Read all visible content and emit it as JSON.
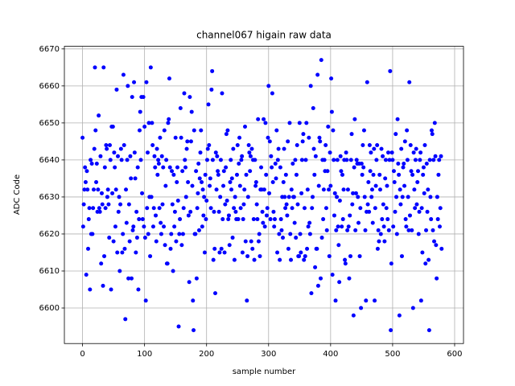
{
  "chart_data": {
    "type": "scatter",
    "title": "channel067 higain raw data",
    "xlabel": "sample number",
    "ylabel": "ADC Code",
    "color": "#0000ff",
    "grid": true,
    "xlim": [
      -29.3,
      614.3
    ],
    "ylim": [
      6590.4,
      6670.7
    ],
    "xticks": [
      0,
      100,
      200,
      300,
      400,
      500,
      600
    ],
    "yticks": [
      6600,
      6610,
      6620,
      6630,
      6640,
      6650,
      6660,
      6670
    ],
    "x": [
      0,
      1,
      2,
      3,
      4,
      5,
      6,
      7,
      8,
      9,
      10,
      11,
      12,
      13,
      14,
      15,
      16,
      17,
      18,
      19,
      20,
      21,
      22,
      23,
      24,
      25,
      26,
      27,
      28,
      29,
      30,
      31,
      32,
      33,
      34,
      35,
      36,
      37,
      38,
      39,
      40,
      41,
      42,
      43,
      44,
      45,
      46,
      47,
      48,
      49,
      50,
      51,
      52,
      53,
      54,
      55,
      56,
      57,
      58,
      59,
      60,
      61,
      62,
      63,
      64,
      65,
      66,
      67,
      68,
      69,
      70,
      71,
      72,
      73,
      74,
      75,
      76,
      77,
      78,
      79,
      80,
      81,
      82,
      83,
      84,
      85,
      86,
      87,
      88,
      89,
      90,
      91,
      92,
      93,
      94,
      95,
      96,
      97,
      98,
      99,
      100,
      101,
      102,
      103,
      104,
      105,
      106,
      107,
      108,
      109,
      110,
      111,
      112,
      113,
      114,
      115,
      116,
      117,
      118,
      119,
      120,
      121,
      122,
      123,
      124,
      125,
      126,
      127,
      128,
      129,
      130,
      131,
      132,
      133,
      134,
      135,
      136,
      137,
      138,
      139,
      140,
      141,
      142,
      143,
      144,
      145,
      146,
      147,
      148,
      149,
      150,
      151,
      152,
      153,
      154,
      155,
      156,
      157,
      158,
      159,
      160,
      161,
      162,
      163,
      164,
      165,
      166,
      167,
      168,
      169,
      170,
      171,
      172,
      173,
      174,
      175,
      176,
      177,
      178,
      179,
      180,
      181,
      182,
      183,
      184,
      185,
      186,
      187,
      188,
      189,
      190,
      191,
      192,
      193,
      194,
      195,
      196,
      197,
      198,
      199,
      200,
      201,
      202,
      203,
      204,
      205,
      206,
      207,
      208,
      209,
      210,
      211,
      212,
      213,
      214,
      215,
      216,
      217,
      218,
      219,
      220,
      221,
      222,
      223,
      224,
      225,
      226,
      227,
      228,
      229,
      230,
      231,
      232,
      233,
      234,
      235,
      236,
      237,
      238,
      239,
      240,
      241,
      242,
      243,
      244,
      245,
      246,
      247,
      248,
      249,
      250,
      251,
      252,
      253,
      254,
      255,
      256,
      257,
      258,
      259,
      260,
      261,
      262,
      263,
      264,
      265,
      266,
      267,
      268,
      269,
      270,
      271,
      272,
      273,
      274,
      275,
      276,
      277,
      278,
      279,
      280,
      281,
      282,
      283,
      284,
      285,
      286,
      287,
      288,
      289,
      290,
      291,
      292,
      293,
      294,
      295,
      296,
      297,
      298,
      299,
      300,
      301,
      302,
      303,
      304,
      305,
      306,
      307,
      308,
      309,
      310,
      311,
      312,
      313,
      314,
      315,
      316,
      317,
      318,
      319,
      320,
      321,
      322,
      323,
      324,
      325,
      326,
      327,
      328,
      329,
      330,
      331,
      332,
      333,
      334,
      335,
      336,
      337,
      338,
      339,
      340,
      341,
      342,
      343,
      344,
      345,
      346,
      347,
      348,
      349,
      350,
      351,
      352,
      353,
      354,
      355,
      356,
      357,
      358,
      359,
      360,
      361,
      362,
      363,
      364,
      365,
      366,
      367,
      368,
      369,
      370,
      371,
      372,
      373,
      374,
      375,
      376,
      377,
      378,
      379,
      380,
      381,
      382,
      383,
      384,
      385,
      386,
      387,
      388,
      389,
      390,
      391,
      392,
      393,
      394,
      395,
      396,
      397,
      398,
      399,
      400,
      401,
      402,
      403,
      404,
      405,
      406,
      407,
      408,
      409,
      410,
      411,
      412,
      413,
      414,
      415,
      416,
      417,
      418,
      419,
      420,
      421,
      422,
      423,
      424,
      425,
      426,
      427,
      428,
      429,
      430,
      431,
      432,
      433,
      434,
      435,
      436,
      437,
      438,
      439,
      440,
      441,
      442,
      443,
      444,
      445,
      446,
      447,
      448,
      449,
      450,
      451,
      452,
      453,
      454,
      455,
      456,
      457,
      458,
      459,
      460,
      461,
      462,
      463,
      464,
      465,
      466,
      467,
      468,
      469,
      470,
      471,
      472,
      473,
      474,
      475,
      476,
      477,
      478,
      479,
      480,
      481,
      482,
      483,
      484,
      485,
      486,
      487,
      488,
      489,
      490,
      491,
      492,
      493,
      494,
      495,
      496,
      497,
      498,
      499,
      500,
      501,
      502,
      503,
      504,
      505,
      506,
      507,
      508,
      509,
      510,
      511,
      512,
      513,
      514,
      515,
      516,
      517,
      518,
      519,
      520,
      521,
      522,
      523,
      524,
      525,
      526,
      527,
      528,
      529,
      530,
      531,
      532,
      533,
      534,
      535,
      536,
      537,
      538,
      539,
      540,
      541,
      542,
      543,
      544,
      545,
      546,
      547,
      548,
      549,
      550,
      551,
      552,
      553,
      554,
      555,
      556,
      557,
      558,
      559,
      560,
      561,
      562,
      563,
      564,
      565,
      566,
      567,
      568,
      569,
      570,
      571,
      572,
      573,
      574,
      575,
      576,
      577,
      578,
      579
    ],
    "values": [
      6646,
      6622,
      6628,
      6632,
      6638,
      6634,
      6609,
      6637,
      6632,
      6616,
      6624,
      6627,
      6605,
      6640,
      6620,
      6639,
      6620,
      6627,
      6632,
      6643,
      6665,
      6648,
      6634,
      6639,
      6626,
      6632,
      6652,
      6627,
      6626,
      6641,
      6612,
      6631,
      6628,
      6606,
      6665,
      6614,
      6638,
      6627,
      6644,
      6643,
      6630,
      6632,
      6628,
      6619,
      6644,
      6640,
      6605,
      6649,
      6631,
      6649,
      6618,
      6642,
      6638,
      6622,
      6632,
      6659,
      6615,
      6641,
      6626,
      6630,
      6610,
      6628,
      6643,
      6640,
      6615,
      6620,
      6663,
      6644,
      6616,
      6597,
      6632,
      6623,
      6640,
      6660,
      6608,
      6628,
      6618,
      6641,
      6635,
      6608,
      6657,
      6621,
      6622,
      6661,
      6642,
      6635,
      6615,
      6626,
      6619,
      6638,
      6605,
      6624,
      6648,
      6653,
      6640,
      6657,
      6631,
      6624,
      6657,
      6622,
      6649,
      6619,
      6602,
      6661,
      6627,
      6642,
      6620,
      6650,
      6630,
      6614,
      6665,
      6630,
      6650,
      6644,
      6622,
      6627,
      6641,
      6638,
      6625,
      6618,
      6643,
      6636,
      6640,
      6639,
      6627,
      6646,
      6623,
      6620,
      6641,
      6628,
      6638,
      6622,
      6648,
      6617,
      6633,
      6640,
      6612,
      6612,
      6650,
      6651,
      6662,
      6638,
      6616,
      6620,
      6637,
      6628,
      6610,
      6636,
      6622,
      6626,
      6646,
      6618,
      6634,
      6638,
      6629,
      6595,
      6620,
      6624,
      6654,
      6646,
      6617,
      6637,
      6620,
      6627,
      6658,
      6640,
      6638,
      6630,
      6643,
      6645,
      6634,
      6625,
      6607,
      6657,
      6626,
      6645,
      6653,
      6633,
      6602,
      6594,
      6648,
      6620,
      6620,
      6637,
      6608,
      6627,
      6631,
      6639,
      6621,
      6635,
      6642,
      6648,
      6634,
      6622,
      6632,
      6625,
      6630,
      6615,
      6636,
      6624,
      6629,
      6640,
      6643,
      6655,
      6644,
      6633,
      6635,
      6627,
      6659,
      6664,
      6640,
      6613,
      6626,
      6616,
      6604,
      6642,
      6632,
      6641,
      6637,
      6636,
      6626,
      6615,
      6630,
      6640,
      6616,
      6658,
      6624,
      6633,
      6637,
      6615,
      6628,
      6638,
      6647,
      6629,
      6648,
      6624,
      6625,
      6617,
      6634,
      6640,
      6632,
      6635,
      6619,
      6643,
      6627,
      6613,
      6630,
      6626,
      6624,
      6636,
      6644,
      6624,
      6639,
      6646,
      6633,
      6627,
      6640,
      6641,
      6615,
      6624,
      6628,
      6632,
      6649,
      6618,
      6636,
      6602,
      6614,
      6630,
      6644,
      6642,
      6637,
      6641,
      6618,
      6643,
      6616,
      6640,
      6624,
      6613,
      6640,
      6633,
      6634,
      6628,
      6624,
      6651,
      6618,
      6620,
      6614,
      6632,
      6638,
      6632,
      6626,
      6623,
      6651,
      6632,
      6622,
      6650,
      6636,
      6625,
      6627,
      6646,
      6660,
      6631,
      6645,
      6624,
      6641,
      6638,
      6658,
      6634,
      6626,
      6622,
      6624,
      6639,
      6635,
      6648,
      6615,
      6640,
      6643,
      6620,
      6613,
      6638,
      6624,
      6621,
      6630,
      6619,
      6634,
      6643,
      6630,
      6627,
      6636,
      6628,
      6625,
      6645,
      6616,
      6630,
      6650,
      6620,
      6613,
      6632,
      6627,
      6639,
      6630,
      6630,
      6623,
      6640,
      6619,
      6636,
      6644,
      6628,
      6614,
      6614,
      6650,
      6620,
      6615,
      6631,
      6640,
      6645,
      6647,
      6613,
      6627,
      6614,
      6640,
      6650,
      6616,
      6632,
      6622,
      6646,
      6623,
      6620,
      6660,
      6604,
      6627,
      6630,
      6654,
      6643,
      6636,
      6611,
      6641,
      6616,
      6616,
      6663,
      6606,
      6633,
      6646,
      6645,
      6608,
      6667,
      6619,
      6640,
      6624,
      6632,
      6640,
      6637,
      6644,
      6627,
      6621,
      6637,
      6649,
      6632,
      6614,
      6642,
      6633,
      6662,
      6653,
      6609,
      6648,
      6640,
      6625,
      6631,
      6602,
      6621,
      6630,
      6640,
      6622,
      6617,
      6607,
      6629,
      6641,
      6637,
      6622,
      6636,
      6624,
      6632,
      6640,
      6613,
      6612,
      6642,
      6640,
      6621,
      6632,
      6622,
      6608,
      6625,
      6614,
      6640,
      6647,
      6628,
      6631,
      6598,
      6638,
      6651,
      6621,
      6631,
      6640,
      6639,
      6630,
      6623,
      6639,
      6614,
      6627,
      6600,
      6639,
      6636,
      6644,
      6638,
      6648,
      6630,
      6621,
      6602,
      6626,
      6661,
      6628,
      6634,
      6626,
      6644,
      6637,
      6642,
      6630,
      6632,
      6623,
      6636,
      6643,
      6602,
      6627,
      6633,
      6640,
      6644,
      6616,
      6621,
      6618,
      6636,
      6632,
      6620,
      6643,
      6624,
      6641,
      6628,
      6622,
      6618,
      6635,
      6640,
      6627,
      6633,
      6624,
      6642,
      6621,
      6640,
      6664,
      6594,
      6612,
      6642,
      6640,
      6622,
      6637,
      6634,
      6626,
      6647,
      6630,
      6620,
      6651,
      6639,
      6636,
      6598,
      6632,
      6628,
      6643,
      6614,
      6630,
      6638,
      6639,
      6633,
      6645,
      6624,
      6622,
      6648,
      6640,
      6630,
      6621,
      6661,
      6625,
      6644,
      6637,
      6621,
      6636,
      6600,
      6642,
      6632,
      6627,
      6640,
      6643,
      6628,
      6634,
      6637,
      6620,
      6626,
      6640,
      6642,
      6602,
      6627,
      6615,
      6636,
      6638,
      6631,
      6644,
      6612,
      6621,
      6639,
      6626,
      6632,
      6613,
      6594,
      6640,
      6630,
      6624,
      6648,
      6647,
      6621,
      6640,
      6618,
      6650,
      6641,
      6617,
      6608,
      6630,
      6624,
      6636,
      6640,
      6622,
      6627,
      6641,
      6616
    ]
  }
}
